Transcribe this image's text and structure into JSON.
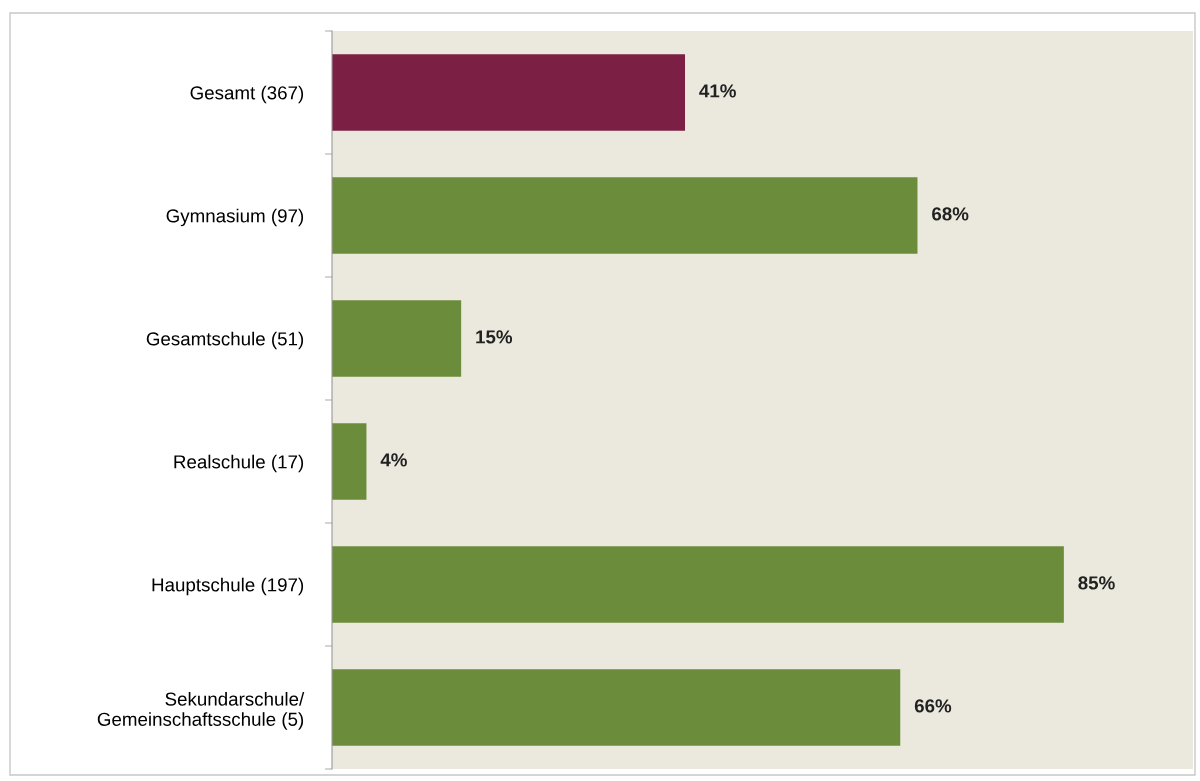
{
  "chart_data": {
    "type": "bar",
    "orientation": "horizontal",
    "categories": [
      "Gesamt (367)",
      "Gymnasium (97)",
      "Gesamtschule (51)",
      "Realschule (17)",
      "Hauptschule (197)",
      "Sekundarschule/\nGemeinschaftsschule (5)"
    ],
    "values": [
      41,
      68,
      15,
      4,
      85,
      66
    ],
    "colors": [
      "#7b1f45",
      "#6b8c3b",
      "#6b8c3b",
      "#6b8c3b",
      "#6b8c3b",
      "#6b8c3b"
    ],
    "value_labels": [
      "41%",
      "68%",
      "15%",
      "4%",
      "85%",
      "66%"
    ],
    "xlim": [
      0,
      100
    ],
    "grid": false,
    "legend": false
  }
}
